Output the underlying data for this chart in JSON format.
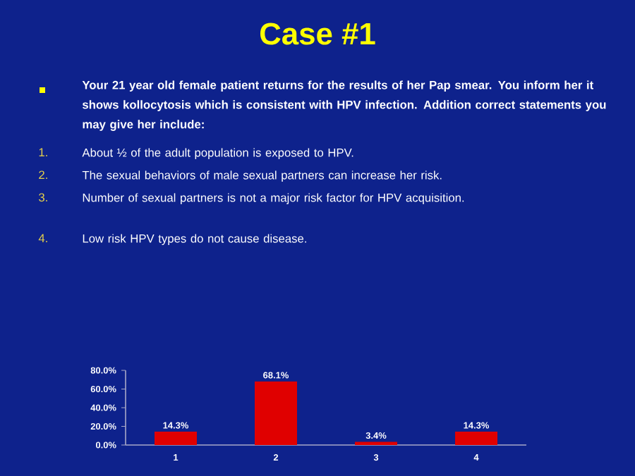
{
  "chart_data": {
    "type": "bar",
    "title": "Case #1",
    "annotations": [
      "Your 21 year old female patient returns for the results of her Pap smear.  You inform her it shows kollocytosis which is consistent with HPV infection.  Addition correct statements you may give her include:",
      "1.",
      "About ½ of the adult population is exposed to HPV.",
      "2.",
      "The sexual behaviors of male sexual partners can increase her risk.",
      "3.",
      "Number of sexual partners is not a major risk factor for HPV acquisition.",
      "4.",
      "Low risk HPV types do not cause disease."
    ],
    "categories": [
      "1",
      "2",
      "3",
      "4"
    ],
    "values": [
      14.3,
      68.1,
      3.4,
      14.3
    ],
    "value_labels": [
      "14.3%",
      "68.1%",
      "3.4%",
      "14.3%"
    ],
    "color": "#e00000",
    "ylim": [
      0,
      80
    ],
    "yticks": [
      {
        "value": 0,
        "label": "0.0%"
      },
      {
        "value": 20,
        "label": "20.0%"
      },
      {
        "value": 40,
        "label": "40.0%"
      },
      {
        "value": 60,
        "label": "60.0%"
      },
      {
        "value": 80,
        "label": "80.0%"
      }
    ]
  }
}
